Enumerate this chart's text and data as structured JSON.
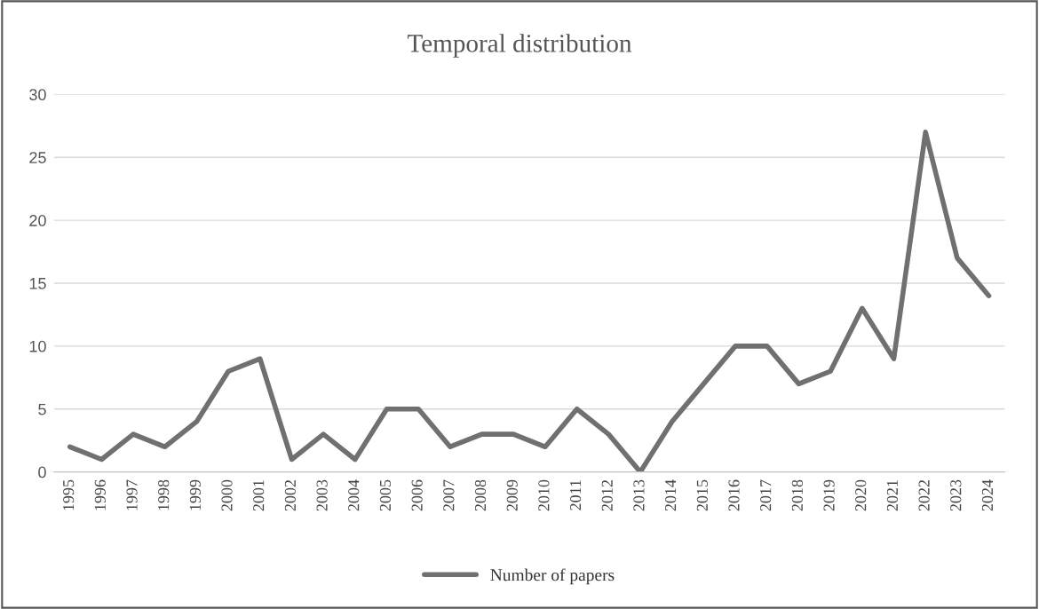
{
  "chart_data": {
    "type": "line",
    "title": "Temporal distribution",
    "categories": [
      "1995",
      "1996",
      "1997",
      "1998",
      "1999",
      "2000",
      "2001",
      "2002",
      "2003",
      "2004",
      "2005",
      "2006",
      "2007",
      "2008",
      "2009",
      "2010",
      "2011",
      "2012",
      "2013",
      "2014",
      "2015",
      "2016",
      "2017",
      "2018",
      "2019",
      "2020",
      "2021",
      "2022",
      "2023",
      "2024"
    ],
    "series": [
      {
        "name": "Number of papers",
        "color": "#707070",
        "values": [
          2,
          1,
          3,
          2,
          4,
          8,
          9,
          1,
          3,
          1,
          5,
          5,
          2,
          3,
          3,
          2,
          5,
          3,
          0,
          4,
          7,
          10,
          10,
          7,
          8,
          13,
          9,
          27,
          17,
          14
        ]
      }
    ],
    "ylim": [
      0,
      30
    ],
    "yticks": [
      0,
      5,
      10,
      15,
      20,
      25,
      30
    ],
    "grid": "y",
    "legend": "bottom",
    "marker": "none",
    "line_style": "solid"
  }
}
